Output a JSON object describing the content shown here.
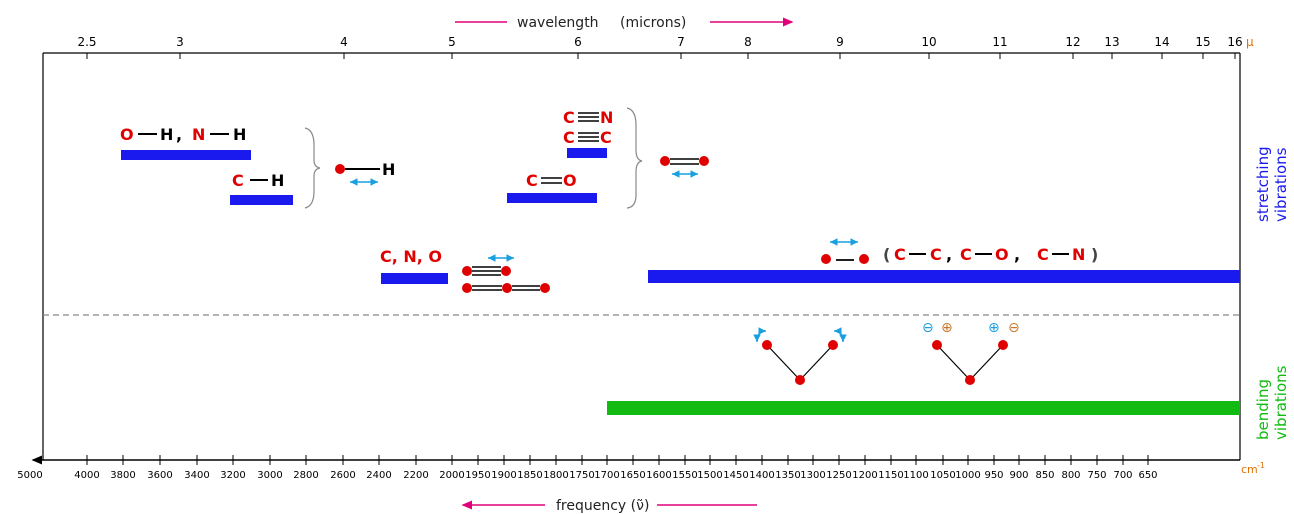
{
  "colors": {
    "stretch_bar": "#1a1aee",
    "bend_bar": "#11bb11",
    "atom": "#e00000",
    "arrow_cyan": "#1aa0e0",
    "arrow_magenta": "#e0007a",
    "unit_orange": "#e07000"
  },
  "axes": {
    "top_title": "wavelength",
    "top_title_unit": "(microns)",
    "top_unit": "μ",
    "bottom_title": "frequency (ν̃)",
    "bottom_unit": "cm",
    "bottom_unit_exp": "-1",
    "wavelength_ticks": [
      "2.5",
      "3",
      "4",
      "5",
      "6",
      "7",
      "8",
      "9",
      "10",
      "11",
      "12",
      "13",
      "14",
      "15",
      "16"
    ],
    "frequency_ticks": [
      "5000",
      "4000",
      "3800",
      "3600",
      "3400",
      "3200",
      "3000",
      "2800",
      "2600",
      "2400",
      "2200",
      "2000",
      "1950",
      "1900",
      "1850",
      "1800",
      "1750",
      "1700",
      "1650",
      "1600",
      "1550",
      "1500",
      "1450",
      "1400",
      "1350",
      "1300",
      "1250",
      "1200",
      "1150",
      "1100",
      "1050",
      "1000",
      "950",
      "900",
      "850",
      "800",
      "750",
      "700",
      "650"
    ]
  },
  "bonds": {
    "oh": {
      "a": "O",
      "b": "H"
    },
    "comma1": ",",
    "nh": {
      "a": "N",
      "b": "H"
    },
    "ch": {
      "a": "C",
      "b": "H"
    },
    "xh": {
      "b": "H"
    },
    "cn_triple": {
      "a": "C",
      "b": "N"
    },
    "cc_triple": {
      "a": "C",
      "b": "C"
    },
    "co_double": {
      "a": "C",
      "b": "O"
    },
    "cno": "C, N, O",
    "single_list": {
      "open": "(",
      "c1": "C",
      "c2": "C",
      "sep1": ",",
      "c3": "C",
      "o": "O",
      "sep2": ",",
      "c4": "C",
      "n": "N",
      "close": ")"
    }
  },
  "side_labels": {
    "stretching_1": "stretching",
    "stretching_2": "vibrations",
    "bending_1": "bending",
    "bending_2": "vibrations"
  },
  "bend_symbols": {
    "minus": "⊖",
    "plus": "⊕"
  }
}
